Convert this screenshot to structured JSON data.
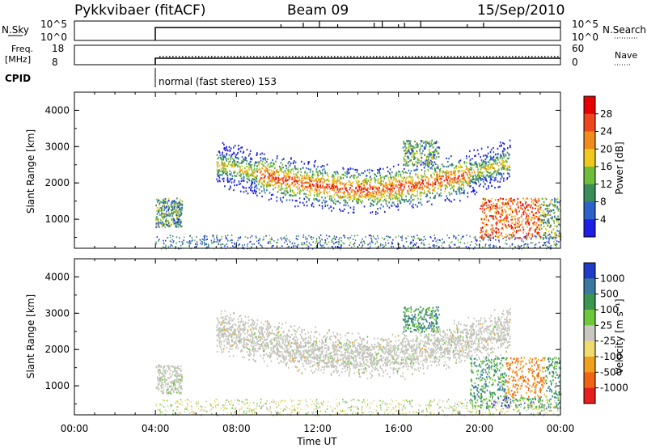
{
  "header": {
    "station": "Pykkvibaer (fitACF)",
    "beam": "Beam 09",
    "date": "15/Sep/2010"
  },
  "strip_labels": {
    "nsky": "N.Sky",
    "nsky_ticks": [
      "10^5",
      "10^0"
    ],
    "nsearch": "N.Search",
    "nsearch_ticks": [
      "10^5",
      "10^0"
    ],
    "freq": "Freq.",
    "freq_unit": "[MHz]",
    "freq_ticks": [
      "18",
      "8"
    ],
    "nave": "Nave",
    "nave_ticks": [
      "60",
      "0"
    ],
    "cpid": "CPID",
    "cpid_text": "normal (fast stereo) 153"
  },
  "colors": {
    "power": [
      "#1e1ee6",
      "#2d63c8",
      "#3a8c5a",
      "#6ebe3c",
      "#f0c81e",
      "#f08c1e",
      "#f0461e",
      "#e60000"
    ],
    "velocity": [
      "#1e3cc8",
      "#3a78a0",
      "#3a9650",
      "#6ec83c",
      "#c8c8c0",
      "#f0dc6e",
      "#f0a01e",
      "#f06414",
      "#e61e1e"
    ],
    "ground_scatter": "#c4c4bc"
  },
  "chart_data": [
    {
      "type": "heatmap",
      "title": "Power",
      "ylabel": "Slant Range [km]",
      "xlabel": "",
      "x_ticks": [
        "00:00",
        "04:00",
        "08:00",
        "12:00",
        "16:00",
        "20:00",
        "00:00"
      ],
      "y_ticks": [
        "1000",
        "2000",
        "3000",
        "4000"
      ],
      "ylim": [
        200,
        4500
      ],
      "xlim_hours": [
        0,
        24
      ],
      "colorbar_label": "Power [dB]",
      "colorbar_ticks": [
        "4",
        "8",
        "12",
        "16",
        "20",
        "24",
        "28"
      ],
      "colorbar_range": [
        0,
        30
      ]
    },
    {
      "type": "heatmap",
      "title": "Velocity",
      "ylabel": "Slant Range [km]",
      "xlabel": "Time UT",
      "x_ticks": [
        "00:00",
        "04:00",
        "08:00",
        "12:00",
        "16:00",
        "20:00",
        "00:00"
      ],
      "y_ticks": [
        "1000",
        "2000",
        "3000",
        "4000"
      ],
      "ylim": [
        200,
        4500
      ],
      "xlim_hours": [
        0,
        24
      ],
      "colorbar_label": "Velocity [m s⁻¹]",
      "colorbar_ticks": [
        "1000",
        "500",
        "100",
        "25",
        "-25",
        "-100",
        "-500",
        "-1000"
      ]
    }
  ]
}
